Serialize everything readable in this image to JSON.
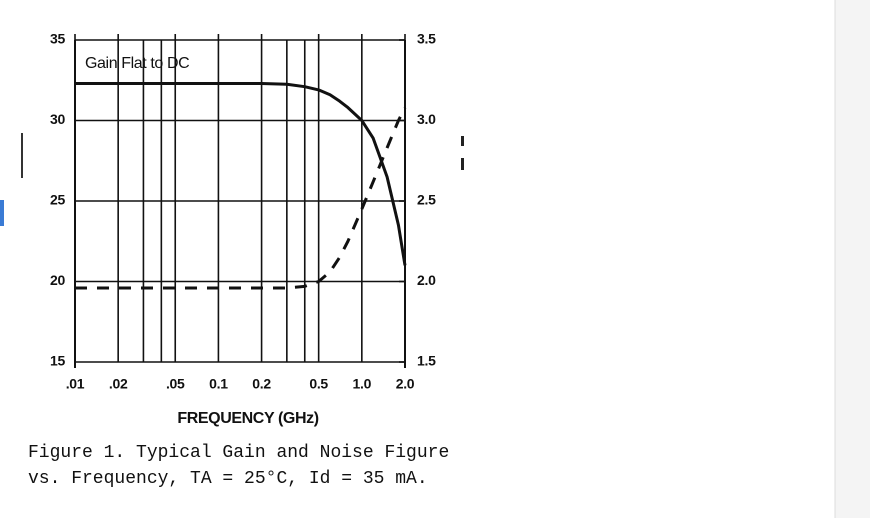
{
  "chart_data": {
    "type": "line",
    "annotation": "Gain Flat to DC",
    "xlabel": "FREQUENCY (GHz)",
    "caption": [
      "Figure 1.  Typical Gain and Noise Figure",
      "vs. Frequency, TA = 25°C, Id = 35 mA."
    ],
    "xscale": "log",
    "xlim": [
      0.01,
      2.0
    ],
    "xticks": [
      {
        "value": 0.01,
        "label": ".01"
      },
      {
        "value": 0.02,
        "label": ".02"
      },
      {
        "value": 0.05,
        "label": ".05"
      },
      0.1,
      0.2,
      0.5,
      {
        "value": 1.0,
        "label": "1.0"
      },
      {
        "value": 2.0,
        "label": "2.0"
      }
    ],
    "xgrid": [
      0.02,
      0.03,
      0.04,
      0.05,
      0.1,
      0.2,
      0.3,
      0.4,
      0.5,
      1.0
    ],
    "ylim": [
      15,
      35
    ],
    "yticks": [
      15,
      20,
      25,
      30,
      35
    ],
    "y2lim": [
      1.5,
      3.5
    ],
    "y2ticks": [
      1.5,
      {
        "value": 2.0,
        "label": "2.0"
      },
      2.5,
      {
        "value": 3.0,
        "label": "3.0"
      },
      3.5
    ],
    "grid": true,
    "x": [
      0.01,
      0.2,
      0.3,
      0.4,
      0.5,
      0.6,
      0.7,
      0.8,
      1.0,
      1.2,
      1.5,
      1.8,
      2.0
    ],
    "series": [
      {
        "color": "#111111",
        "dash": false,
        "values": [
          32.3,
          32.3,
          32.25,
          32.1,
          31.9,
          31.6,
          31.2,
          30.8,
          30.0,
          28.9,
          26.5,
          23.5,
          21.0
        ]
      },
      {
        "color": "#111111",
        "dash": true,
        "axis": "y2",
        "values": [
          1.96,
          1.96,
          1.96,
          1.97,
          2.0,
          2.06,
          2.15,
          2.25,
          2.45,
          2.62,
          2.83,
          3.0,
          3.08
        ]
      }
    ]
  }
}
